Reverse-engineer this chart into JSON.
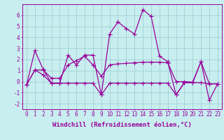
{
  "xlabel": "Windchill (Refroidissement éolien,°C)",
  "x": [
    0,
    1,
    2,
    3,
    4,
    5,
    6,
    7,
    8,
    9,
    10,
    11,
    12,
    13,
    14,
    15,
    16,
    17,
    18,
    19,
    20,
    21,
    22,
    23
  ],
  "line1": [
    -0.3,
    2.8,
    1.1,
    -0.15,
    -0.15,
    2.4,
    1.5,
    2.4,
    2.4,
    -1.2,
    4.3,
    5.4,
    4.8,
    4.3,
    6.5,
    5.9,
    2.3,
    1.8,
    -1.2,
    -0.1,
    -0.1,
    1.8,
    -1.7,
    -0.2
  ],
  "line2": [
    -0.3,
    1.05,
    1.05,
    0.3,
    0.3,
    1.5,
    1.9,
    2.3,
    1.5,
    0.5,
    1.5,
    1.6,
    1.65,
    1.7,
    1.75,
    1.75,
    1.75,
    1.7,
    0.0,
    0.0,
    -0.05,
    1.8,
    -0.2,
    -0.2
  ],
  "line3": [
    -0.3,
    1.05,
    0.6,
    -0.15,
    -0.15,
    -0.15,
    -0.15,
    -0.15,
    -0.15,
    -1.2,
    -0.15,
    -0.15,
    -0.15,
    -0.15,
    -0.15,
    -0.15,
    -0.15,
    -0.15,
    -1.2,
    -0.1,
    -0.1,
    -0.1,
    -0.2,
    -0.2
  ],
  "bg_color": "#c8eef0",
  "grid_color": "#99cccc",
  "line_color": "#990099",
  "marker": "+",
  "markersize": 4,
  "linewidth": 0.9,
  "xlim": [
    -0.5,
    23.5
  ],
  "ylim": [
    -2.5,
    7.0
  ],
  "yticks": [
    -2,
    -1,
    0,
    1,
    2,
    3,
    4,
    5,
    6
  ],
  "xticks": [
    0,
    1,
    2,
    3,
    4,
    5,
    6,
    7,
    8,
    9,
    10,
    11,
    12,
    13,
    14,
    15,
    16,
    17,
    18,
    19,
    20,
    21,
    22,
    23
  ],
  "tick_fontsize": 5.5,
  "xlabel_fontsize": 6.5
}
